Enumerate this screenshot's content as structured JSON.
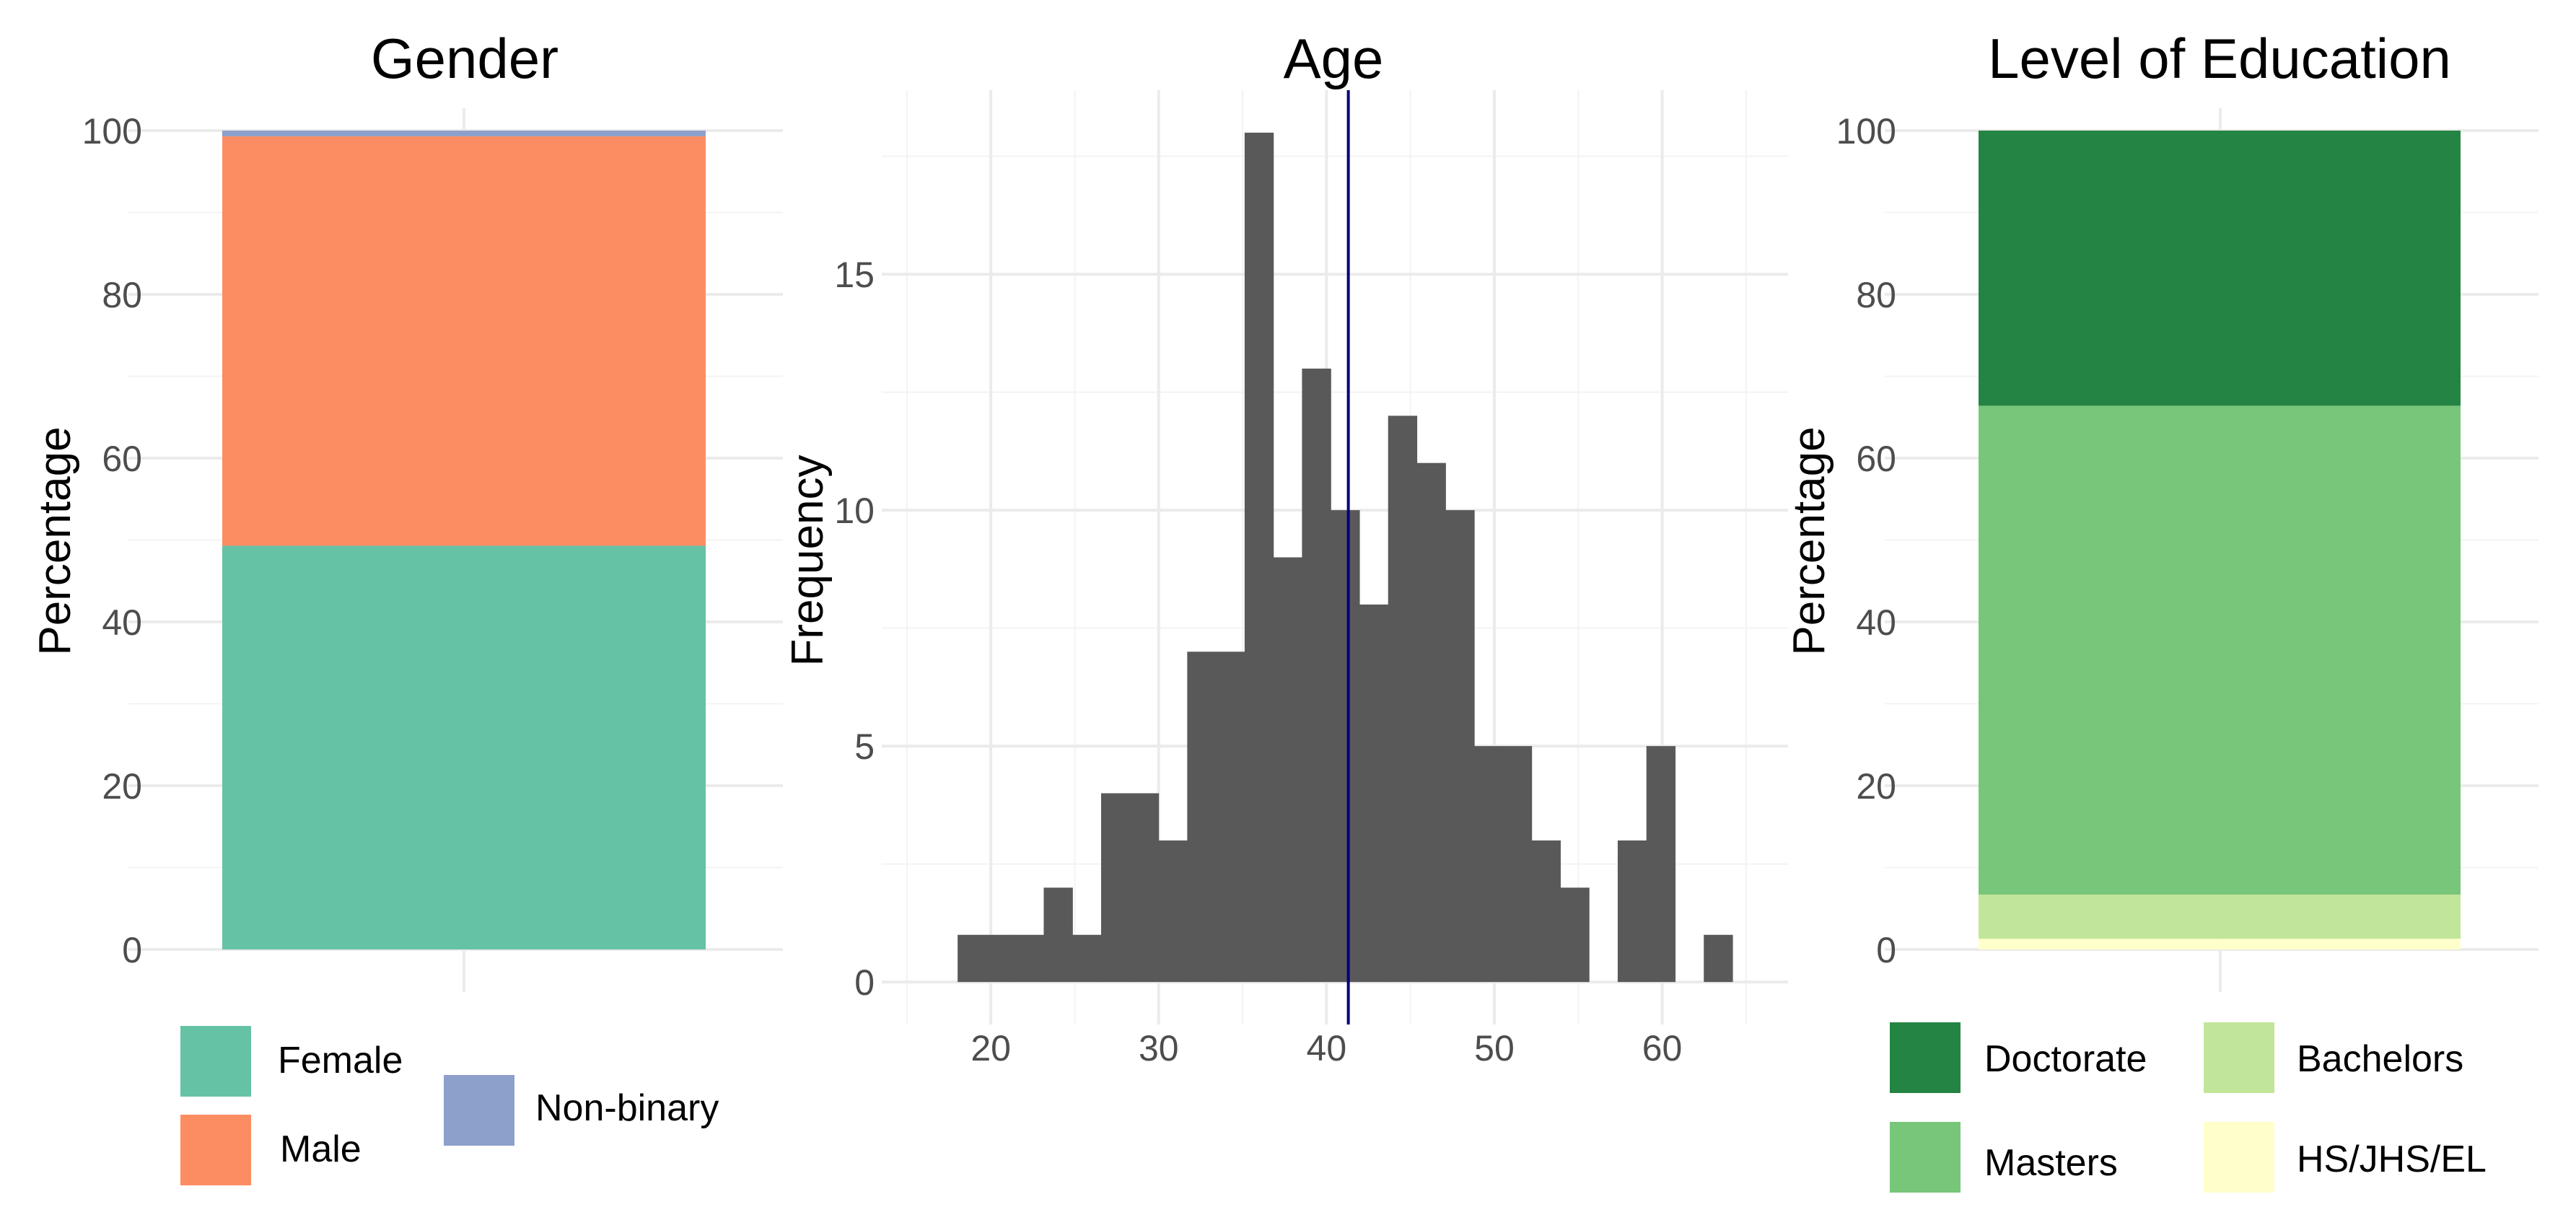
{
  "chart_data": [
    {
      "type": "bar",
      "stacked": true,
      "title": "Gender",
      "xlabel": "",
      "ylabel": "Percentage",
      "ylim": [
        0,
        100
      ],
      "yticks": [
        "0",
        "20",
        "40",
        "60",
        "80",
        "100"
      ],
      "series": [
        {
          "name": "Female",
          "values": [
            49.3
          ],
          "color": "#66c2a5"
        },
        {
          "name": "Male",
          "values": [
            50.0
          ],
          "color": "#fc8d62"
        },
        {
          "name": "Non-binary",
          "values": [
            0.7
          ],
          "color": "#8da0cb"
        }
      ],
      "grid": true,
      "legend": "bottom"
    },
    {
      "type": "bar",
      "subtype": "histogram",
      "title": "Age",
      "xlabel": "",
      "ylabel": "Frequency",
      "xlim": [
        13.5,
        67.5
      ],
      "ylim": [
        -0.9,
        18.9
      ],
      "xticks": [
        "20",
        "30",
        "40",
        "50",
        "60"
      ],
      "yticks": [
        "0",
        "5",
        "10",
        "15"
      ],
      "bin_width": 1.71,
      "bin_start": 18.02,
      "values": [
        1,
        1,
        1,
        2,
        1,
        4,
        4,
        3,
        7,
        7,
        18,
        9,
        13,
        10,
        8,
        12,
        11,
        10,
        5,
        5,
        3,
        2,
        0,
        3,
        5,
        0,
        1
      ],
      "bar_color": "#595959",
      "mean_line": 41.3,
      "mean_line_color": "#000080",
      "grid": true
    },
    {
      "type": "bar",
      "stacked": true,
      "title": "Level of Education",
      "xlabel": "",
      "ylabel": "Percentage",
      "ylim": [
        0,
        100
      ],
      "yticks": [
        "0",
        "20",
        "40",
        "60",
        "80",
        "100"
      ],
      "series": [
        {
          "name": "HS/JHS/EL",
          "values": [
            1.3
          ],
          "color": "#ffffcc"
        },
        {
          "name": "Bachelors",
          "values": [
            5.4
          ],
          "color": "#c2e699"
        },
        {
          "name": "Masters",
          "values": [
            59.7
          ],
          "color": "#78c679"
        },
        {
          "name": "Doctorate",
          "values": [
            33.6
          ],
          "color": "#238443"
        }
      ],
      "legend_order": [
        "Doctorate",
        "Bachelors",
        "Masters",
        "HS/JHS/EL"
      ],
      "grid": true,
      "legend": "bottom"
    }
  ]
}
